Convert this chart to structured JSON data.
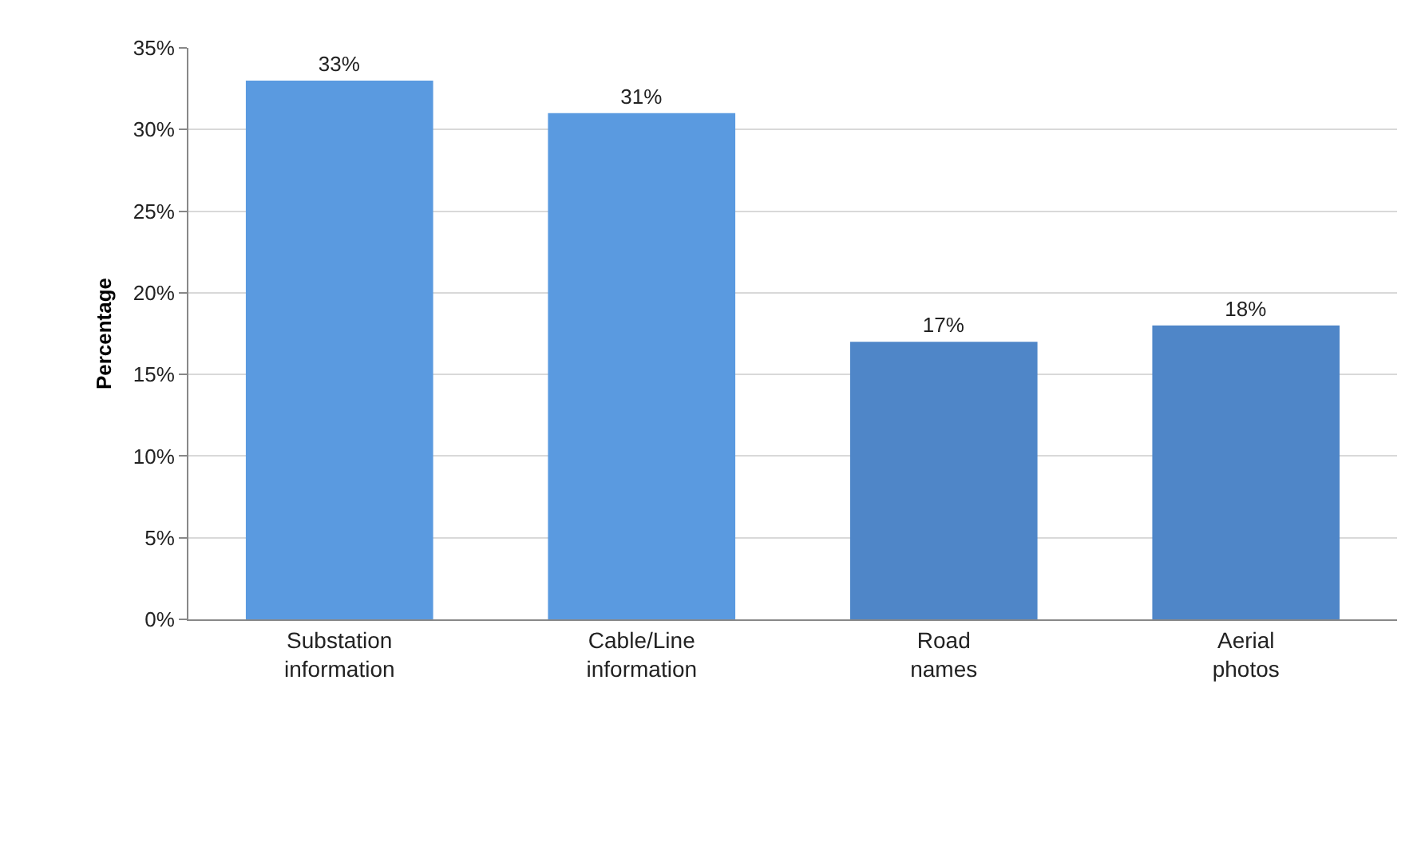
{
  "chart_data": {
    "type": "bar",
    "ylabel": "Percentage",
    "categories": [
      "Substation information",
      "Cable/Line information",
      "Road names",
      "Aerial photos"
    ],
    "values": [
      33,
      31,
      17,
      18
    ],
    "colors": [
      "#5a9ae0",
      "#5a9ae0",
      "#4f86c8",
      "#4f86c8"
    ],
    "value_labels": [
      "33%",
      "31%",
      "17%",
      "18%"
    ],
    "ylim": [
      0,
      35
    ],
    "yticks": [
      {
        "value": 0,
        "label": "0%"
      },
      {
        "value": 5,
        "label": "5%"
      },
      {
        "value": 10,
        "label": "10%"
      },
      {
        "value": 15,
        "label": "15%"
      },
      {
        "value": 20,
        "label": "20%"
      },
      {
        "value": 25,
        "label": "25%"
      },
      {
        "value": 30,
        "label": "30%"
      },
      {
        "value": 35,
        "label": "35%"
      }
    ],
    "grid": "y",
    "legend": false
  }
}
